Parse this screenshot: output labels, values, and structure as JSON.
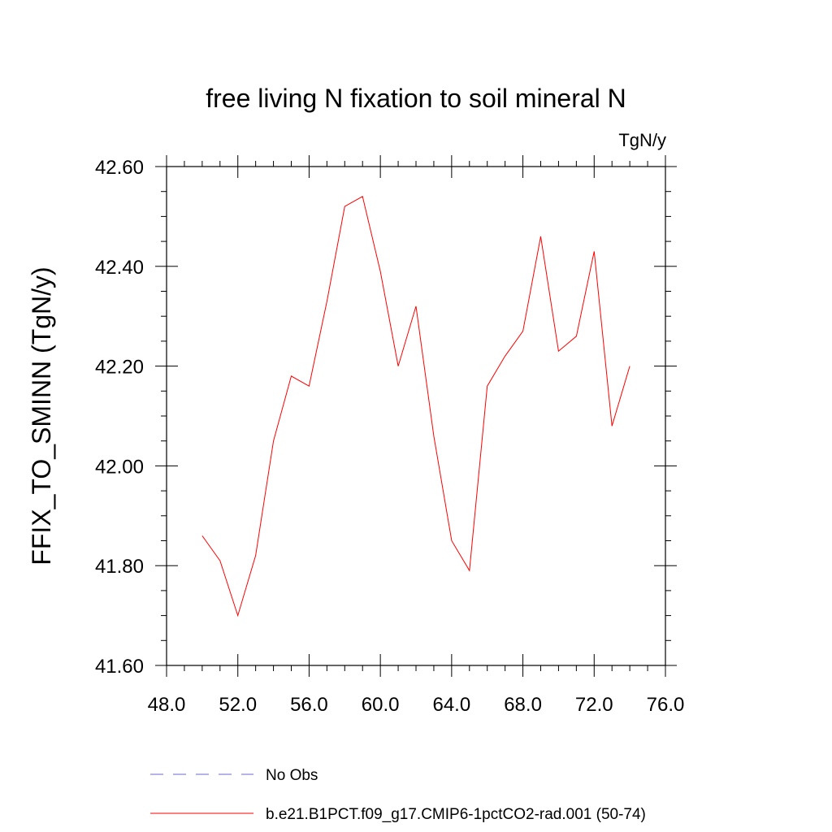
{
  "chart_data": {
    "type": "line",
    "title": "free living N fixation to soil mineral N",
    "units_label": "TgN/y",
    "ylabel": "FFIX_TO_SMINN  (TgN/y)",
    "xlabel": "",
    "xlim": [
      48.0,
      76.0
    ],
    "ylim": [
      41.6,
      42.6
    ],
    "x_ticks": [
      "48.0",
      "52.0",
      "56.0",
      "60.0",
      "64.0",
      "68.0",
      "72.0",
      "76.0"
    ],
    "y_ticks": [
      "41.60",
      "41.80",
      "42.00",
      "42.20",
      "42.40",
      "42.60"
    ],
    "grid": false,
    "legend_position": "bottom",
    "series": [
      {
        "name": "No Obs",
        "color": "#6a6ad0",
        "dashed": true,
        "x": [],
        "y": []
      },
      {
        "name": "b.e21.B1PCT.f09_g17.CMIP6-1pctCO2-rad.001 (50-74)",
        "color": "#ff0000",
        "dashed": false,
        "x": [
          50,
          51,
          52,
          53,
          54,
          55,
          56,
          57,
          58,
          59,
          60,
          61,
          62,
          63,
          64,
          65,
          66,
          67,
          68,
          69,
          70,
          71,
          72,
          73,
          74
        ],
        "y": [
          41.86,
          41.81,
          41.7,
          41.82,
          42.05,
          42.18,
          42.16,
          42.33,
          42.52,
          42.54,
          42.39,
          42.2,
          42.32,
          42.06,
          41.85,
          41.79,
          42.16,
          42.22,
          42.27,
          42.46,
          42.23,
          42.26,
          42.43,
          42.08,
          42.2
        ]
      }
    ]
  }
}
